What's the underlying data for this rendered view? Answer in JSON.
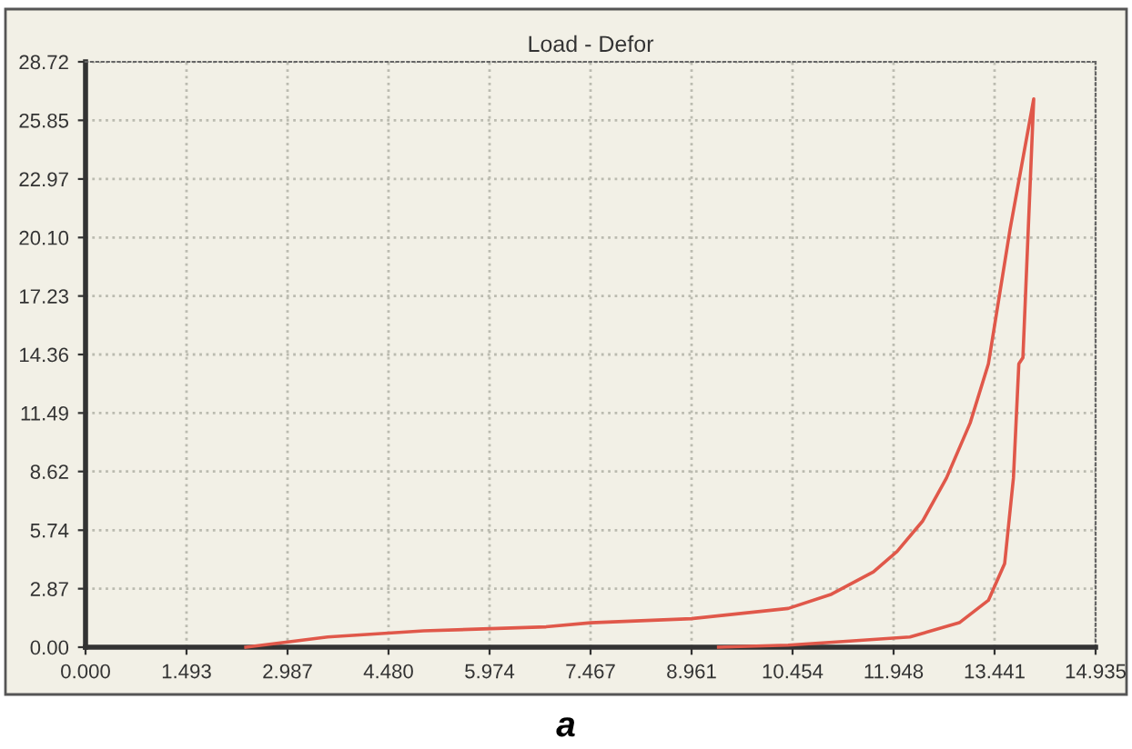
{
  "chart_data": {
    "type": "line",
    "title": "Load - Defor",
    "annotations": [
      "a"
    ],
    "series": [
      {
        "color": "#e0584a",
        "x": [
          2.37,
          3.58,
          5.0,
          6.81,
          7.47,
          8.96,
          10.39,
          11.03,
          11.65,
          12.0,
          12.38,
          12.73,
          13.08,
          13.35,
          13.67,
          14.02,
          13.86,
          13.8,
          13.72,
          13.59,
          13.35,
          12.92,
          12.19,
          11.3,
          10.39,
          9.36
        ],
        "values": [
          0,
          0.5,
          0.8,
          1.0,
          1.2,
          1.4,
          1.9,
          2.6,
          3.7,
          4.7,
          6.2,
          8.3,
          11.0,
          13.9,
          20.5,
          26.9,
          14.2,
          13.9,
          8.3,
          4.1,
          2.3,
          1.2,
          0.5,
          0.3,
          0.1,
          0
        ]
      }
    ],
    "xlim": [
      0,
      14.935
    ],
    "ylim": [
      0,
      28.72
    ],
    "xticks": [
      {
        "value": 0,
        "label": "0.000"
      },
      {
        "value": 1.493,
        "label": "1.493"
      },
      {
        "value": 2.987,
        "label": "2.987"
      },
      {
        "value": 4.48,
        "label": "4.480"
      },
      {
        "value": 5.974,
        "label": "5.974"
      },
      {
        "value": 7.467,
        "label": "7.467"
      },
      {
        "value": 8.961,
        "label": "8.961"
      },
      {
        "value": 10.454,
        "label": "10.454"
      },
      {
        "value": 11.948,
        "label": "11.948"
      },
      {
        "value": 13.441,
        "label": "13.441"
      },
      {
        "value": 14.935,
        "label": "14.935"
      }
    ],
    "yticks": [
      {
        "value": 0,
        "label": "0.00"
      },
      {
        "value": 2.87,
        "label": "2.87"
      },
      {
        "value": 5.74,
        "label": "5.74"
      },
      {
        "value": 8.62,
        "label": "8.62"
      },
      {
        "value": 11.49,
        "label": "11.49"
      },
      {
        "value": 14.36,
        "label": "14.36"
      },
      {
        "value": 17.23,
        "label": "17.23"
      },
      {
        "value": 20.1,
        "label": "20.10"
      },
      {
        "value": 22.97,
        "label": "22.97"
      },
      {
        "value": 25.85,
        "label": "25.85"
      },
      {
        "value": 28.72,
        "label": "28.72"
      }
    ],
    "grid": true,
    "marker": "none",
    "line_style": "solid"
  }
}
